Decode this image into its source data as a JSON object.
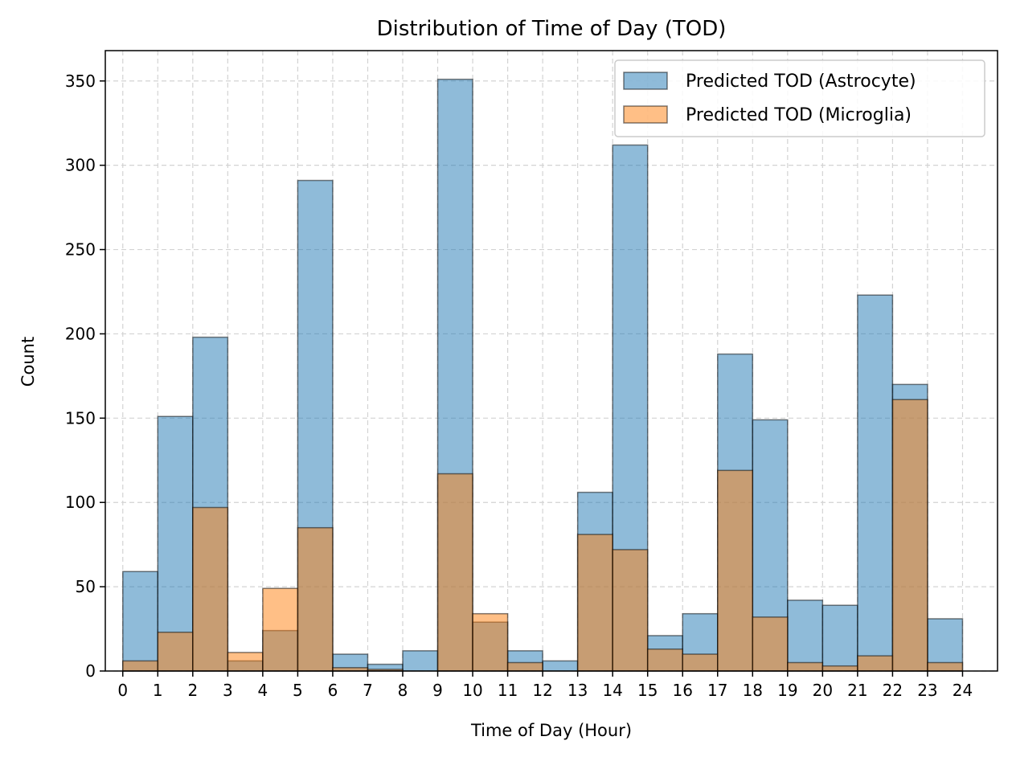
{
  "chart_data": {
    "type": "bar",
    "title": "Distribution of Time of Day (TOD)",
    "xlabel": "Time of Day (Hour)",
    "ylabel": "Count",
    "xlim": [
      -0.5,
      25.0
    ],
    "ylim": [
      0,
      368
    ],
    "xticks": [
      0,
      1,
      2,
      3,
      4,
      5,
      6,
      7,
      8,
      9,
      10,
      11,
      12,
      13,
      14,
      15,
      16,
      17,
      18,
      19,
      20,
      21,
      22,
      23,
      24
    ],
    "yticks": [
      0,
      50,
      100,
      150,
      200,
      250,
      300,
      350
    ],
    "grid": true,
    "legend_position": "top-right",
    "bin_edges": [
      0,
      1,
      2,
      3,
      4,
      5,
      6,
      7,
      8,
      9,
      10,
      11,
      12,
      13,
      14,
      15,
      16,
      17,
      18,
      19,
      20,
      21,
      22,
      23,
      24
    ],
    "series": [
      {
        "name": "Predicted TOD (Astrocyte)",
        "color": "#1f77b4",
        "values": [
          59,
          151,
          198,
          6,
          24,
          291,
          10,
          4,
          12,
          351,
          29,
          12,
          6,
          106,
          312,
          21,
          34,
          188,
          149,
          42,
          39,
          223,
          170,
          31
        ]
      },
      {
        "name": "Predicted TOD (Microglia)",
        "color": "#ff7f0e",
        "values": [
          6,
          23,
          97,
          11,
          49,
          85,
          2,
          1,
          0,
          117,
          34,
          5,
          0,
          81,
          72,
          13,
          10,
          119,
          32,
          5,
          3,
          9,
          161,
          5
        ]
      }
    ]
  }
}
